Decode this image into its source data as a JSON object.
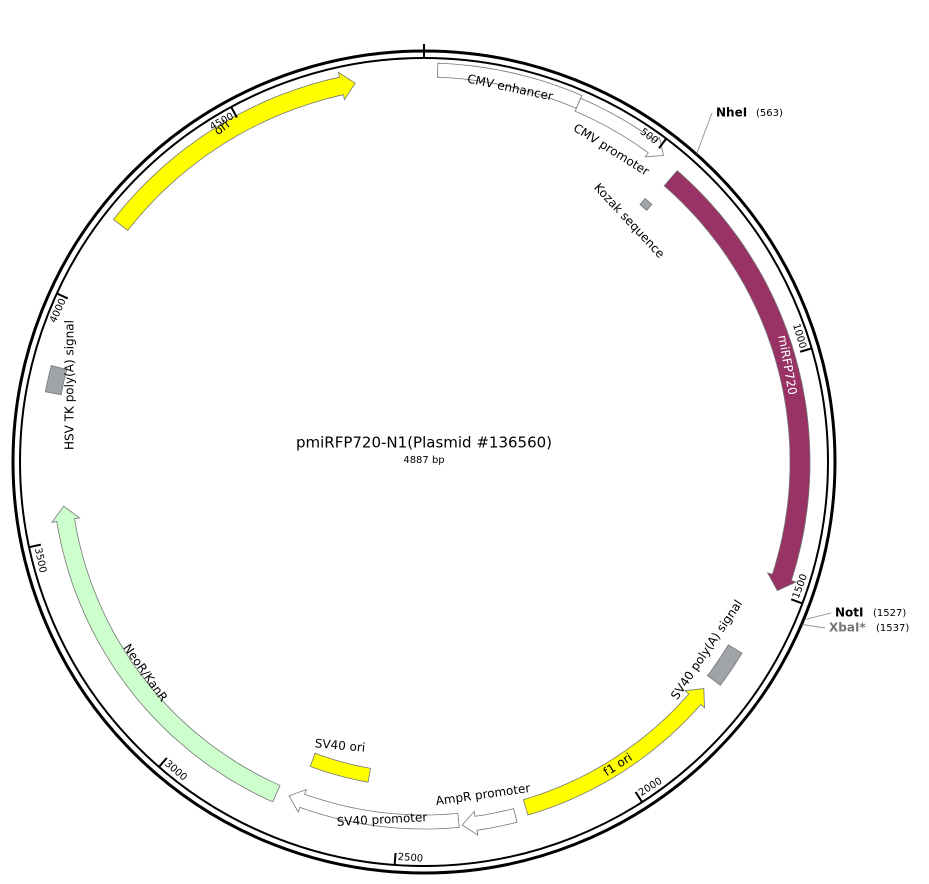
{
  "plasmid": {
    "name": "pmiRFP720-N1(Plasmid #136560)",
    "length": {
      "value": 4887,
      "label": "4887 bp"
    }
  },
  "ticks": [
    500,
    1000,
    1500,
    2000,
    2500,
    3000,
    3500,
    4000,
    4500
  ],
  "features": [
    "CMV enhancer",
    "CMV promoter",
    "Kozak sequence",
    "miRFP720",
    "SV40 poly(A) signal",
    "f1 ori",
    "AmpR promoter",
    "SV40 promoter",
    "SV40 ori",
    "NeoR/KanR",
    "HSV TK poly(A) signal",
    "ori"
  ],
  "sites": [
    {
      "name": "NheI",
      "position": {
        "value": 563,
        "label": "(563)"
      }
    },
    {
      "name": "NotI",
      "position": {
        "value": 1527,
        "label": "(1527)"
      }
    },
    {
      "name": "XbaI*",
      "position": {
        "value": 1537,
        "label": "(1537)"
      }
    }
  ]
}
